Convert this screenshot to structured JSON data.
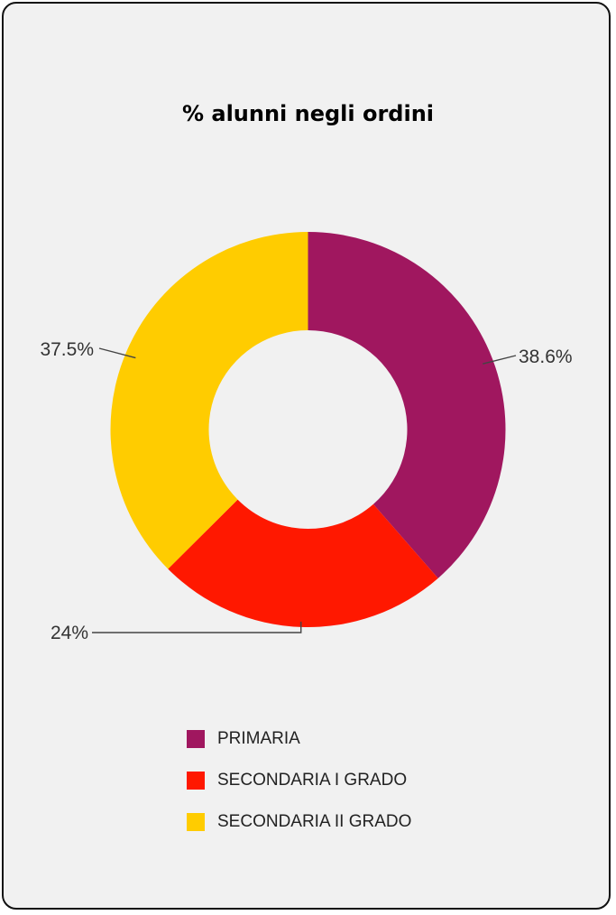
{
  "chart_data": {
    "type": "pie",
    "style": "donut",
    "title": "% alunni negli ordini",
    "slices": [
      {
        "name": "PRIMARIA",
        "value": 38.6,
        "label": "38.6%",
        "color": "#a0175f"
      },
      {
        "name": "SECONDARIA I GRADO",
        "value": 24,
        "label": "24%",
        "color": "#ff1800"
      },
      {
        "name": "SECONDARIA II GRADO",
        "value": 37.5,
        "label": "37.5%",
        "color": "#ffcc00"
      }
    ],
    "legend_position": "bottom"
  }
}
